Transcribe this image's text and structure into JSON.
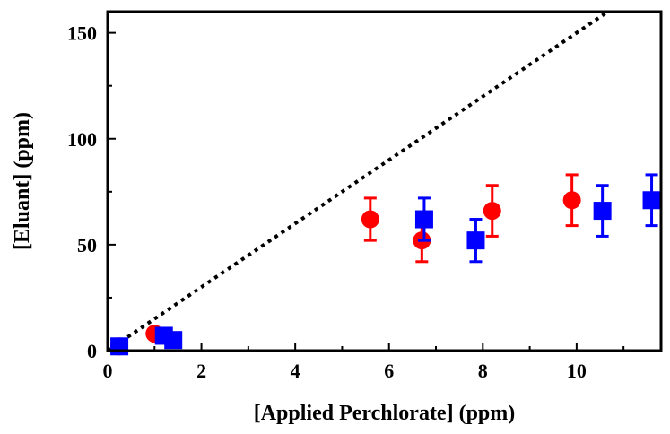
{
  "chart_data": {
    "type": "scatter",
    "title": "",
    "xlabel": "[Applied Perchlorate] (ppm)",
    "ylabel": "[Eluant] (ppm)",
    "xlim": [
      0,
      11.8
    ],
    "ylim": [
      0,
      160
    ],
    "x_ticks": [
      0,
      2,
      4,
      6,
      8,
      10
    ],
    "x_tick_labels": [
      "0",
      "2",
      "4",
      "6",
      "8",
      "10"
    ],
    "y_ticks": [
      0,
      50,
      100,
      150
    ],
    "y_tick_labels": [
      "0",
      "50",
      "100",
      "150"
    ],
    "grid": false,
    "legend": "none",
    "reference_line": {
      "style": "dotted",
      "color": "#000000",
      "slope": 15,
      "intercept": 0
    },
    "series": [
      {
        "marker": "circle",
        "color": "#ff0000",
        "points": [
          {
            "x": 0.25,
            "y": 2,
            "err": 0
          },
          {
            "x": 1.0,
            "y": 8,
            "err": 0
          },
          {
            "x": 5.6,
            "y": 62,
            "err": 10
          },
          {
            "x": 6.7,
            "y": 52,
            "err": 10
          },
          {
            "x": 8.2,
            "y": 66,
            "err": 12
          },
          {
            "x": 9.9,
            "y": 71,
            "err": 12
          }
        ]
      },
      {
        "marker": "square",
        "color": "#0000ff",
        "points": [
          {
            "x": 0.25,
            "y": 2,
            "err": 0
          },
          {
            "x": 1.2,
            "y": 7,
            "err": 0
          },
          {
            "x": 1.4,
            "y": 5,
            "err": 0
          },
          {
            "x": 6.75,
            "y": 62,
            "err": 10
          },
          {
            "x": 7.85,
            "y": 52,
            "err": 10
          },
          {
            "x": 10.55,
            "y": 66,
            "err": 12
          },
          {
            "x": 11.6,
            "y": 71,
            "err": 12
          }
        ]
      }
    ]
  }
}
